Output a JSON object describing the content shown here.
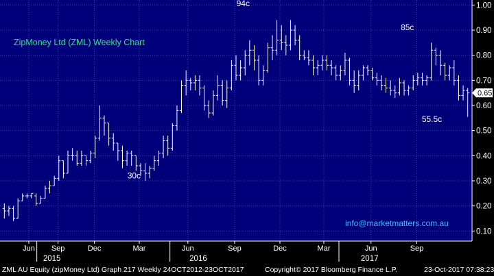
{
  "chart_data": {
    "type": "ohlc",
    "title": "ZipMoney Ltd (ZML) Weekly Chart",
    "watermark": "info@marketmatters.com.au",
    "ylim": [
      0.06,
      1.02
    ],
    "yticks": [
      "1.00",
      "0.90",
      "0.80",
      "0.70",
      "0.60",
      "0.50",
      "0.40",
      "0.30",
      "0.20",
      "0.10"
    ],
    "last_price_label": "0.65",
    "last_price": 0.65,
    "xticks": [
      {
        "label": "Jun",
        "x": 0.061
      },
      {
        "label": "Sep",
        "x": 0.123
      },
      {
        "label": "Dec",
        "x": 0.2
      },
      {
        "label": "Mar",
        "x": 0.295
      },
      {
        "label": "Jun",
        "x": 0.398
      },
      {
        "label": "Sep",
        "x": 0.497
      },
      {
        "label": "Dec",
        "x": 0.593
      },
      {
        "label": "Mar",
        "x": 0.686
      },
      {
        "label": "Jun",
        "x": 0.786
      },
      {
        "label": "Sep",
        "x": 0.883
      }
    ],
    "years": [
      {
        "label": "2015",
        "x": 0.11
      },
      {
        "label": "2016",
        "x": 0.42
      },
      {
        "label": "2017",
        "x": 0.783
      }
    ],
    "year_dividers": [
      0.078,
      0.36,
      0.718
    ],
    "annotations": [
      {
        "text": "94c",
        "x": 0.515,
        "y": 0.975
      },
      {
        "text": "30c",
        "x": 0.284,
        "y": 0.26
      },
      {
        "text": "85c",
        "x": 0.863,
        "y": 0.875
      },
      {
        "text": "55.5c",
        "x": 0.915,
        "y": 0.495
      }
    ],
    "series": [
      {
        "name": "ZML",
        "bars": [
          [
            0.19,
            0.21,
            0.15,
            0.18
          ],
          [
            0.18,
            0.2,
            0.16,
            0.19
          ],
          [
            0.19,
            0.2,
            0.14,
            0.15
          ],
          [
            0.15,
            0.23,
            0.15,
            0.22
          ],
          [
            0.22,
            0.25,
            0.22,
            0.24
          ],
          [
            0.24,
            0.25,
            0.23,
            0.24
          ],
          [
            0.24,
            0.25,
            0.23,
            0.25
          ],
          [
            0.24,
            0.25,
            0.2,
            0.21
          ],
          [
            0.21,
            0.24,
            0.21,
            0.23
          ],
          [
            0.23,
            0.28,
            0.23,
            0.27
          ],
          [
            0.27,
            0.3,
            0.25,
            0.28
          ],
          [
            0.28,
            0.32,
            0.28,
            0.31
          ],
          [
            0.31,
            0.4,
            0.3,
            0.38
          ],
          [
            0.38,
            0.38,
            0.31,
            0.33
          ],
          [
            0.33,
            0.42,
            0.33,
            0.4
          ],
          [
            0.4,
            0.43,
            0.38,
            0.4
          ],
          [
            0.4,
            0.42,
            0.36,
            0.37
          ],
          [
            0.37,
            0.42,
            0.36,
            0.4
          ],
          [
            0.4,
            0.4,
            0.36,
            0.38
          ],
          [
            0.38,
            0.42,
            0.37,
            0.41
          ],
          [
            0.41,
            0.48,
            0.39,
            0.47
          ],
          [
            0.47,
            0.6,
            0.46,
            0.55
          ],
          [
            0.55,
            0.56,
            0.48,
            0.53
          ],
          [
            0.53,
            0.53,
            0.44,
            0.47
          ],
          [
            0.47,
            0.49,
            0.42,
            0.45
          ],
          [
            0.45,
            0.45,
            0.38,
            0.42
          ],
          [
            0.42,
            0.44,
            0.35,
            0.38
          ],
          [
            0.38,
            0.42,
            0.36,
            0.41
          ],
          [
            0.41,
            0.42,
            0.36,
            0.4
          ],
          [
            0.4,
            0.4,
            0.34,
            0.36
          ],
          [
            0.36,
            0.37,
            0.32,
            0.34
          ],
          [
            0.34,
            0.37,
            0.3,
            0.33
          ],
          [
            0.33,
            0.36,
            0.31,
            0.35
          ],
          [
            0.35,
            0.4,
            0.34,
            0.38
          ],
          [
            0.38,
            0.42,
            0.36,
            0.41
          ],
          [
            0.41,
            0.48,
            0.39,
            0.46
          ],
          [
            0.46,
            0.48,
            0.4,
            0.43
          ],
          [
            0.43,
            0.53,
            0.42,
            0.52
          ],
          [
            0.52,
            0.6,
            0.5,
            0.58
          ],
          [
            0.58,
            0.7,
            0.57,
            0.68
          ],
          [
            0.68,
            0.74,
            0.64,
            0.7
          ],
          [
            0.7,
            0.71,
            0.66,
            0.69
          ],
          [
            0.69,
            0.72,
            0.66,
            0.7
          ],
          [
            0.7,
            0.72,
            0.64,
            0.67
          ],
          [
            0.67,
            0.68,
            0.58,
            0.6
          ],
          [
            0.6,
            0.62,
            0.55,
            0.57
          ],
          [
            0.57,
            0.66,
            0.56,
            0.64
          ],
          [
            0.64,
            0.72,
            0.62,
            0.68
          ],
          [
            0.68,
            0.7,
            0.6,
            0.62
          ],
          [
            0.62,
            0.7,
            0.59,
            0.67
          ],
          [
            0.67,
            0.78,
            0.66,
            0.76
          ],
          [
            0.76,
            0.8,
            0.7,
            0.72
          ],
          [
            0.72,
            0.78,
            0.7,
            0.75
          ],
          [
            0.75,
            0.82,
            0.72,
            0.8
          ],
          [
            0.8,
            0.86,
            0.76,
            0.82
          ],
          [
            0.82,
            0.84,
            0.74,
            0.78
          ],
          [
            0.78,
            0.8,
            0.68,
            0.7
          ],
          [
            0.7,
            0.76,
            0.68,
            0.74
          ],
          [
            0.74,
            0.85,
            0.73,
            0.83
          ],
          [
            0.83,
            0.88,
            0.78,
            0.82
          ],
          [
            0.82,
            0.94,
            0.8,
            0.86
          ],
          [
            0.86,
            0.92,
            0.82,
            0.85
          ],
          [
            0.85,
            0.88,
            0.8,
            0.84
          ],
          [
            0.84,
            0.94,
            0.82,
            0.9
          ],
          [
            0.9,
            0.92,
            0.84,
            0.86
          ],
          [
            0.86,
            0.88,
            0.78,
            0.8
          ],
          [
            0.8,
            0.82,
            0.78,
            0.79
          ],
          [
            0.79,
            0.82,
            0.76,
            0.78
          ],
          [
            0.78,
            0.8,
            0.72,
            0.75
          ],
          [
            0.75,
            0.78,
            0.72,
            0.76
          ],
          [
            0.76,
            0.8,
            0.74,
            0.78
          ],
          [
            0.78,
            0.8,
            0.74,
            0.76
          ],
          [
            0.76,
            0.78,
            0.72,
            0.75
          ],
          [
            0.75,
            0.76,
            0.7,
            0.72
          ],
          [
            0.72,
            0.76,
            0.7,
            0.74
          ],
          [
            0.74,
            0.81,
            0.72,
            0.78
          ],
          [
            0.78,
            0.79,
            0.68,
            0.7
          ],
          [
            0.7,
            0.74,
            0.65,
            0.68
          ],
          [
            0.68,
            0.74,
            0.66,
            0.72
          ],
          [
            0.72,
            0.76,
            0.7,
            0.75
          ],
          [
            0.75,
            0.76,
            0.72,
            0.74
          ],
          [
            0.74,
            0.75,
            0.7,
            0.71
          ],
          [
            0.71,
            0.73,
            0.68,
            0.7
          ],
          [
            0.7,
            0.72,
            0.66,
            0.68
          ],
          [
            0.68,
            0.71,
            0.65,
            0.67
          ],
          [
            0.67,
            0.7,
            0.64,
            0.66
          ],
          [
            0.66,
            0.68,
            0.63,
            0.65
          ],
          [
            0.65,
            0.71,
            0.64,
            0.69
          ],
          [
            0.69,
            0.7,
            0.64,
            0.66
          ],
          [
            0.66,
            0.68,
            0.64,
            0.67
          ],
          [
            0.67,
            0.72,
            0.66,
            0.7
          ],
          [
            0.7,
            0.73,
            0.68,
            0.71
          ],
          [
            0.71,
            0.73,
            0.68,
            0.7
          ],
          [
            0.7,
            0.72,
            0.68,
            0.71
          ],
          [
            0.71,
            0.85,
            0.7,
            0.82
          ],
          [
            0.82,
            0.83,
            0.76,
            0.8
          ],
          [
            0.8,
            0.82,
            0.72,
            0.76
          ],
          [
            0.76,
            0.77,
            0.7,
            0.72
          ],
          [
            0.72,
            0.76,
            0.7,
            0.75
          ],
          [
            0.75,
            0.78,
            0.68,
            0.7
          ],
          [
            0.7,
            0.72,
            0.62,
            0.64
          ],
          [
            0.64,
            0.68,
            0.62,
            0.66
          ],
          [
            0.66,
            0.67,
            0.555,
            0.65
          ]
        ]
      }
    ]
  },
  "footer": {
    "ticker": "ZML AU Equity (zipMoney Ltd) Graph 217  Weekly 24OCT2012-23OCT2017",
    "copyright": "Copyright© 2017 Bloomberg Finance L.P.",
    "timestamp": "23-Oct-2017 07:38:23"
  },
  "colors": {
    "background": "#00007a",
    "grid": "#3c3cb4",
    "bars": "#ffffff",
    "title": "#2ee07a",
    "watermark": "#3fb7ff",
    "axis_text": "#ffffff",
    "price_label_bg": "#ffffff"
  }
}
